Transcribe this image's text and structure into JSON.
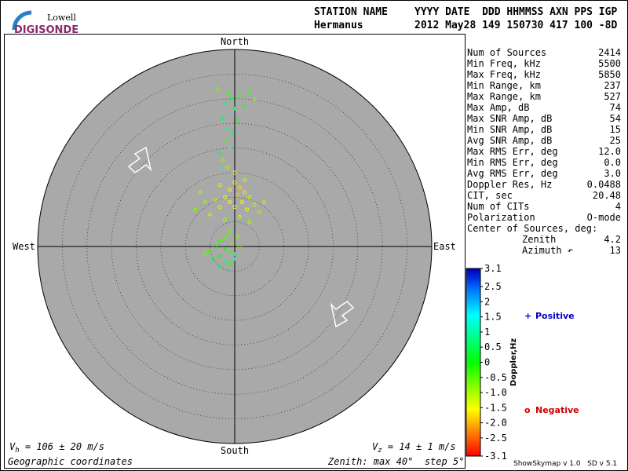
{
  "header": {
    "logo_top": "Lowell",
    "logo_bottom": "DIGISONDE",
    "row1_left": "STATION NAME",
    "row1_right": "YYYY DATE  DDD HHMMSS AXN PPS IGP",
    "row2_left": "Hermanus",
    "row2_right": "2012 May28 149 150730 417 100 -8D"
  },
  "stats": [
    [
      "Num of Sources",
      "2414"
    ],
    [
      "Min Freq, kHz",
      "5500"
    ],
    [
      "Max Freq, kHz",
      "5850"
    ],
    [
      "Min Range, km",
      "237"
    ],
    [
      "Max Range, km",
      "527"
    ],
    [
      "Max Amp, dB",
      "74"
    ],
    [
      "Max SNR Amp, dB",
      "54"
    ],
    [
      "Min SNR Amp, dB",
      "15"
    ],
    [
      "Avg SNR Amp, dB",
      "25"
    ],
    [
      "Max RMS Err, deg",
      "12.0"
    ],
    [
      "Min RMS Err, deg",
      "0.0"
    ],
    [
      "Avg RMS Err, deg",
      "3.0"
    ],
    [
      "Doppler Res, Hz",
      "0.0488"
    ],
    [
      "CIT, sec",
      "20.48"
    ],
    [
      "Num of CITs",
      "4"
    ],
    [
      "Polarization",
      "O-mode"
    ]
  ],
  "center": {
    "title": "Center of Sources, deg:",
    "rows": [
      [
        "Zenith",
        "4.2"
      ],
      [
        "Azimuth ↶",
        "13"
      ]
    ]
  },
  "footer": {
    "vh": {
      "symbol": "V",
      "sub": "h",
      "text": " = 106 ± 20 m/s"
    },
    "vz": {
      "symbol": "V",
      "sub": "z",
      "text": " = 14 ± 1 m/s"
    },
    "coords": "Geographic coordinates",
    "zenith": {
      "t1": "Zenith: max ",
      "max": 40,
      "t2": "°  step ",
      "step": 5,
      "t3": "°"
    },
    "version": "ShowSkymap v 1.0   SD v 5.1"
  },
  "chart_data": {
    "type": "skymap",
    "directions": {
      "north": "North",
      "south": "South",
      "east": "East",
      "west": "West"
    },
    "points": {
      "x": [
        -1.5,
        -0.5,
        1,
        -3.5,
        -2,
        0,
        2,
        -1,
        -2.5,
        0.5,
        -1.5,
        -0.5,
        -2,
        -1,
        -3,
        -2.5,
        -3,
        3,
        4,
        0,
        1,
        -1,
        2,
        0.5,
        -2,
        3,
        -4,
        1.5,
        -1,
        4,
        -3,
        0,
        2.5,
        -6,
        -8,
        5,
        -5,
        1,
        -2,
        3,
        6,
        -7,
        -3,
        2,
        0,
        -1.5,
        -1,
        -2,
        -3,
        -4,
        -2,
        -1,
        0,
        -3,
        -4.5,
        -2,
        -1,
        -3,
        -5,
        -0.5,
        1,
        0,
        -1.5,
        -6,
        -2.5,
        0.5
      ],
      "y": [
        31,
        30,
        30.5,
        32,
        29,
        28,
        28.5,
        27,
        26,
        25.5,
        24,
        23,
        21.5,
        20,
        19,
        17.5,
        16,
        31.5,
        30,
        13,
        12,
        11.5,
        11,
        10.5,
        10,
        10,
        9.5,
        9,
        9,
        8.5,
        8,
        8,
        7.5,
        9,
        7.5,
        7,
        6.5,
        6,
        5.5,
        5,
        9,
        11,
        12.5,
        13.5,
        15,
        16,
        3,
        2,
        1,
        0,
        -0.5,
        -1,
        -1.5,
        -2,
        -2.5,
        -3,
        -3.5,
        -4,
        -1,
        0.5,
        0,
        -2.5,
        -5,
        -1.5,
        1.5,
        2
      ],
      "doppler": [
        -0.3,
        0.2,
        -0.4,
        -0.6,
        0.8,
        0.4,
        -0.2,
        1.0,
        0.6,
        -0.1,
        0.9,
        0.3,
        -0.5,
        1.1,
        0.5,
        -0.8,
        1.2,
        -0.3,
        -0.7,
        -1.6,
        -1.8,
        -1.5,
        -1.7,
        -1.9,
        -1.4,
        -1.3,
        -1.1,
        -1.6,
        -1.5,
        -1.0,
        -1.2,
        -1.4,
        -1.3,
        -0.9,
        -0.8,
        -1.0,
        -1.1,
        -1.2,
        -0.9,
        -1.0,
        -1.1,
        -1.0,
        -1.3,
        -1.2,
        -1.5,
        -1.0,
        -0.6,
        -0.5,
        -0.3,
        -0.2,
        0.1,
        -0.4,
        0.6,
        -0.1,
        0.3,
        0.7,
        -0.2,
        0.5,
        -0.4,
        -0.7,
        -0.5,
        0.9,
        0.8,
        -0.6,
        -0.4,
        -0.8
      ]
    },
    "colorbar": {
      "label": "Doppler,Hz",
      "lim": [
        -3.1,
        3.1
      ],
      "ticks": [
        3.1,
        2.5,
        2,
        1.5,
        1,
        0.5,
        0,
        -0.5,
        {
          "value": -1,
          "label": "-1.0"
        },
        -1.5,
        {
          "value": -2,
          "label": "-2.0"
        },
        -2.5,
        -3.1
      ]
    },
    "legend": [
      {
        "marker": "+",
        "label": "Positive",
        "color": "#0000c8"
      },
      {
        "marker": "o",
        "label": "Negative",
        "color": "#d00000"
      }
    ],
    "background": "#a9a9a9"
  }
}
